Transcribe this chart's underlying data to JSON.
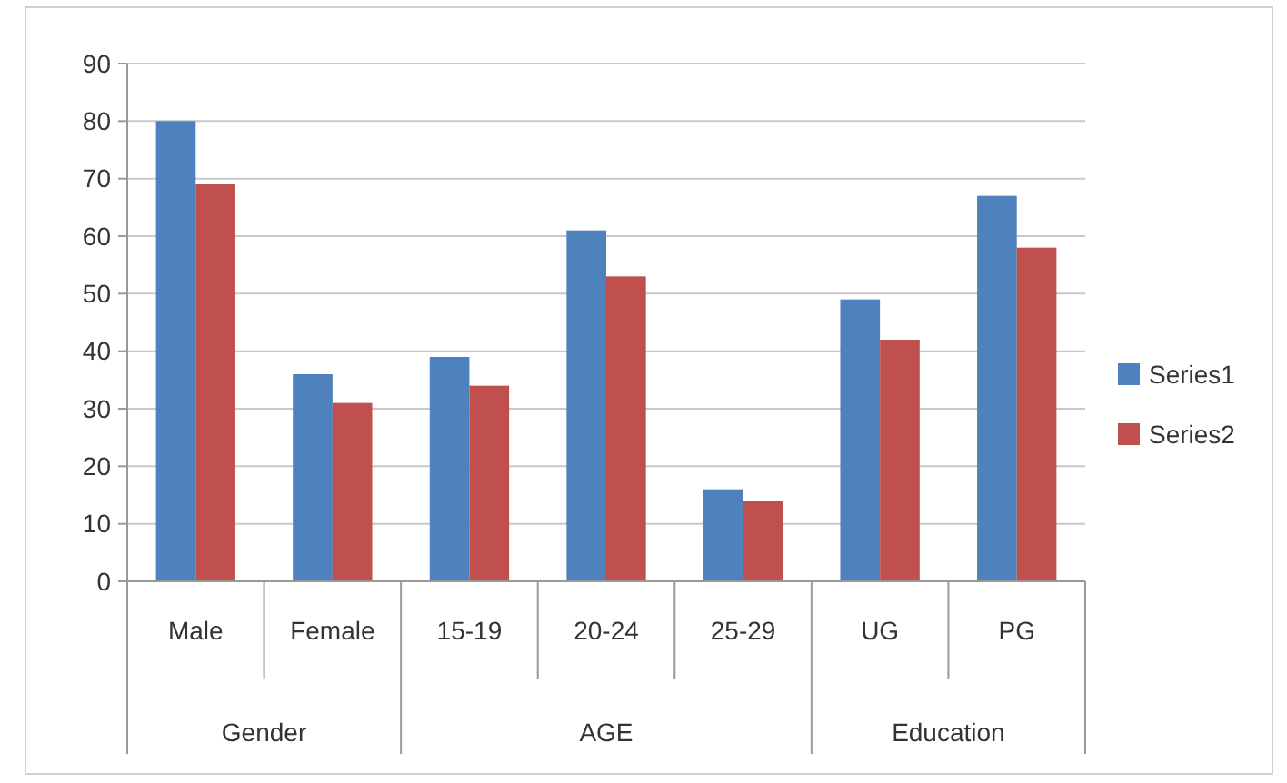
{
  "chart_data": {
    "type": "bar",
    "categories": [
      "Male",
      "Female",
      "15-19",
      "20-24",
      "25-29",
      "UG",
      "PG"
    ],
    "series": [
      {
        "name": "Series1",
        "color": "#4f81bd",
        "values": [
          80,
          36,
          39,
          61,
          16,
          49,
          67
        ]
      },
      {
        "name": "Series2",
        "color": "#c0504d",
        "values": [
          69,
          31,
          34,
          53,
          14,
          42,
          58
        ]
      }
    ],
    "ylim": [
      0,
      90
    ],
    "yticks": [
      0,
      10,
      20,
      30,
      40,
      50,
      60,
      70,
      80,
      90
    ],
    "grid": "y",
    "legend": "right",
    "annotations": [
      "Gender",
      "AGE",
      "Education"
    ]
  }
}
